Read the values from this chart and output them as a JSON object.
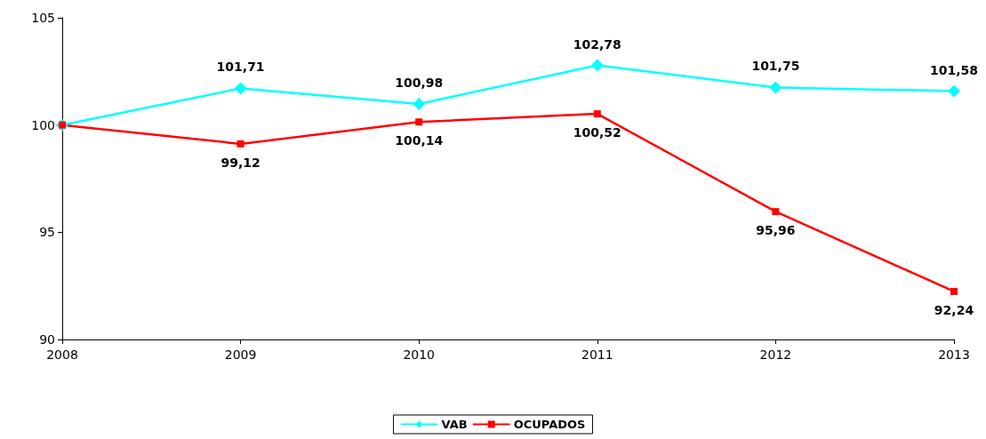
{
  "chart_data": {
    "type": "line",
    "categories": [
      "2008",
      "2009",
      "2010",
      "2011",
      "2012",
      "2013"
    ],
    "series": [
      {
        "name": "VAB",
        "color": "#00ffff",
        "marker": "diamond",
        "values": [
          100,
          101.71,
          100.98,
          102.78,
          101.75,
          101.58
        ],
        "value_labels": [
          null,
          "101,71",
          "100,98",
          "102,78",
          "101,75",
          "101,58"
        ]
      },
      {
        "name": "OCUPADOS",
        "color": "#ff0000",
        "marker": "square",
        "values": [
          100,
          99.12,
          100.14,
          100.52,
          95.96,
          92.24
        ],
        "value_labels": [
          null,
          "99,12",
          "100,14",
          "100,52",
          "95,96",
          "92,24"
        ]
      }
    ],
    "ylim": [
      90,
      105
    ],
    "yticks": [
      90,
      95,
      100,
      105
    ],
    "grid": false,
    "legend": "bottom",
    "line_style": "solid"
  }
}
